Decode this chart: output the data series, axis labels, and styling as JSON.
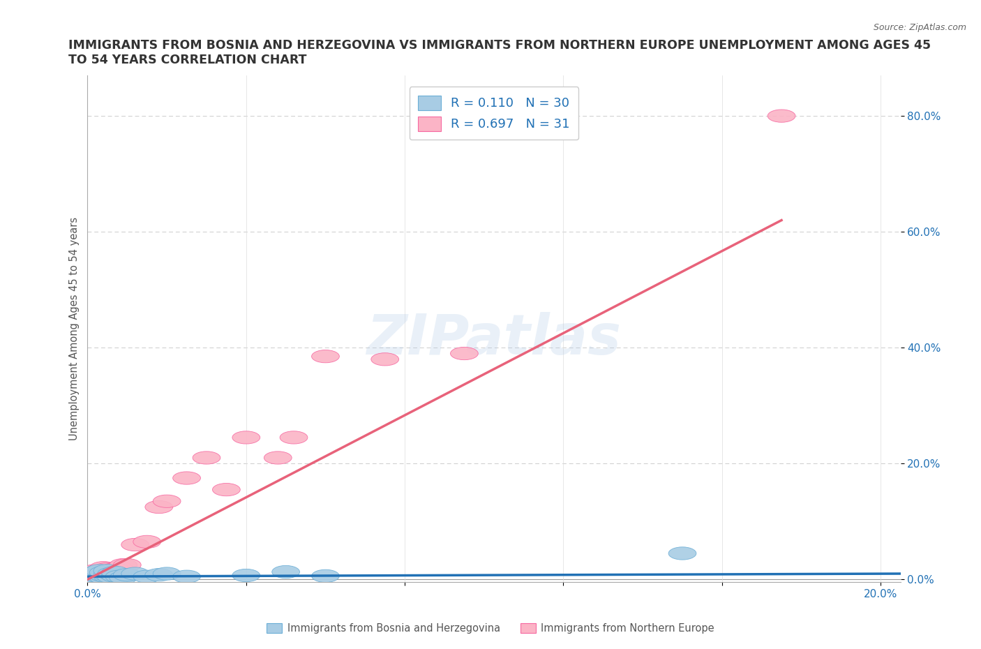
{
  "title": "IMMIGRANTS FROM BOSNIA AND HERZEGOVINA VS IMMIGRANTS FROM NORTHERN EUROPE UNEMPLOYMENT AMONG AGES 45\nTO 54 YEARS CORRELATION CHART",
  "source_text": "Source: ZipAtlas.com",
  "ylabel": "Unemployment Among Ages 45 to 54 years",
  "xlim": [
    0.0,
    0.205
  ],
  "ylim": [
    -0.005,
    0.87
  ],
  "xticks": [
    0.0,
    0.04,
    0.08,
    0.12,
    0.16,
    0.2
  ],
  "yticks": [
    0.0,
    0.2,
    0.4,
    0.6,
    0.8
  ],
  "ytick_labels": [
    "0.0%",
    "20.0%",
    "40.0%",
    "60.0%",
    "80.0%"
  ],
  "xtick_labels": [
    "0.0%",
    "",
    "",
    "",
    "",
    "20.0%"
  ],
  "grid_color": "#cccccc",
  "background_color": "#ffffff",
  "watermark": "ZIPatlas",
  "blue_series": {
    "label": "Immigrants from Bosnia and Herzegovina",
    "color": "#a8cce4",
    "edge_color": "#6baed6",
    "R": "0.110",
    "N": "30",
    "x": [
      0.001,
      0.001,
      0.002,
      0.002,
      0.002,
      0.003,
      0.003,
      0.003,
      0.004,
      0.004,
      0.004,
      0.005,
      0.005,
      0.005,
      0.006,
      0.006,
      0.007,
      0.007,
      0.008,
      0.009,
      0.01,
      0.012,
      0.015,
      0.018,
      0.02,
      0.025,
      0.04,
      0.05,
      0.06,
      0.15
    ],
    "y": [
      0.005,
      0.01,
      0.003,
      0.008,
      0.012,
      0.005,
      0.009,
      0.015,
      0.003,
      0.007,
      0.012,
      0.005,
      0.008,
      0.015,
      0.004,
      0.01,
      0.006,
      0.012,
      0.005,
      0.003,
      0.008,
      0.01,
      0.005,
      0.008,
      0.01,
      0.005,
      0.007,
      0.013,
      0.006,
      0.045
    ],
    "trend_color": "#2171b5",
    "trend_x": [
      0.0,
      0.205
    ],
    "trend_y": [
      0.005,
      0.01
    ]
  },
  "pink_series": {
    "label": "Immigrants from Northern Europe",
    "color": "#fbb4c6",
    "edge_color": "#f768a1",
    "R": "0.697",
    "N": "31",
    "x": [
      0.001,
      0.001,
      0.002,
      0.002,
      0.003,
      0.003,
      0.004,
      0.004,
      0.005,
      0.005,
      0.006,
      0.006,
      0.007,
      0.007,
      0.008,
      0.009,
      0.01,
      0.012,
      0.015,
      0.018,
      0.02,
      0.025,
      0.03,
      0.035,
      0.04,
      0.048,
      0.052,
      0.06,
      0.075,
      0.095,
      0.175
    ],
    "y": [
      0.003,
      0.01,
      0.005,
      0.015,
      0.008,
      0.015,
      0.012,
      0.02,
      0.008,
      0.018,
      0.01,
      0.015,
      0.01,
      0.018,
      0.02,
      0.025,
      0.025,
      0.06,
      0.065,
      0.125,
      0.135,
      0.175,
      0.21,
      0.155,
      0.245,
      0.21,
      0.245,
      0.385,
      0.38,
      0.39,
      0.8
    ],
    "trend_color": "#e8627a",
    "trend_x": [
      0.0,
      0.175
    ],
    "trend_y": [
      0.0,
      0.62
    ]
  },
  "legend": {
    "R1": "0.110",
    "N1": "30",
    "R2": "0.697",
    "N2": "31",
    "color1": "#a8cce4",
    "edge1": "#6baed6",
    "color2": "#fbb4c6",
    "edge2": "#f768a1",
    "text_color": "#2171b5"
  },
  "title_color": "#333333",
  "title_fontsize": 12.5,
  "tick_label_color": "#2171b5"
}
